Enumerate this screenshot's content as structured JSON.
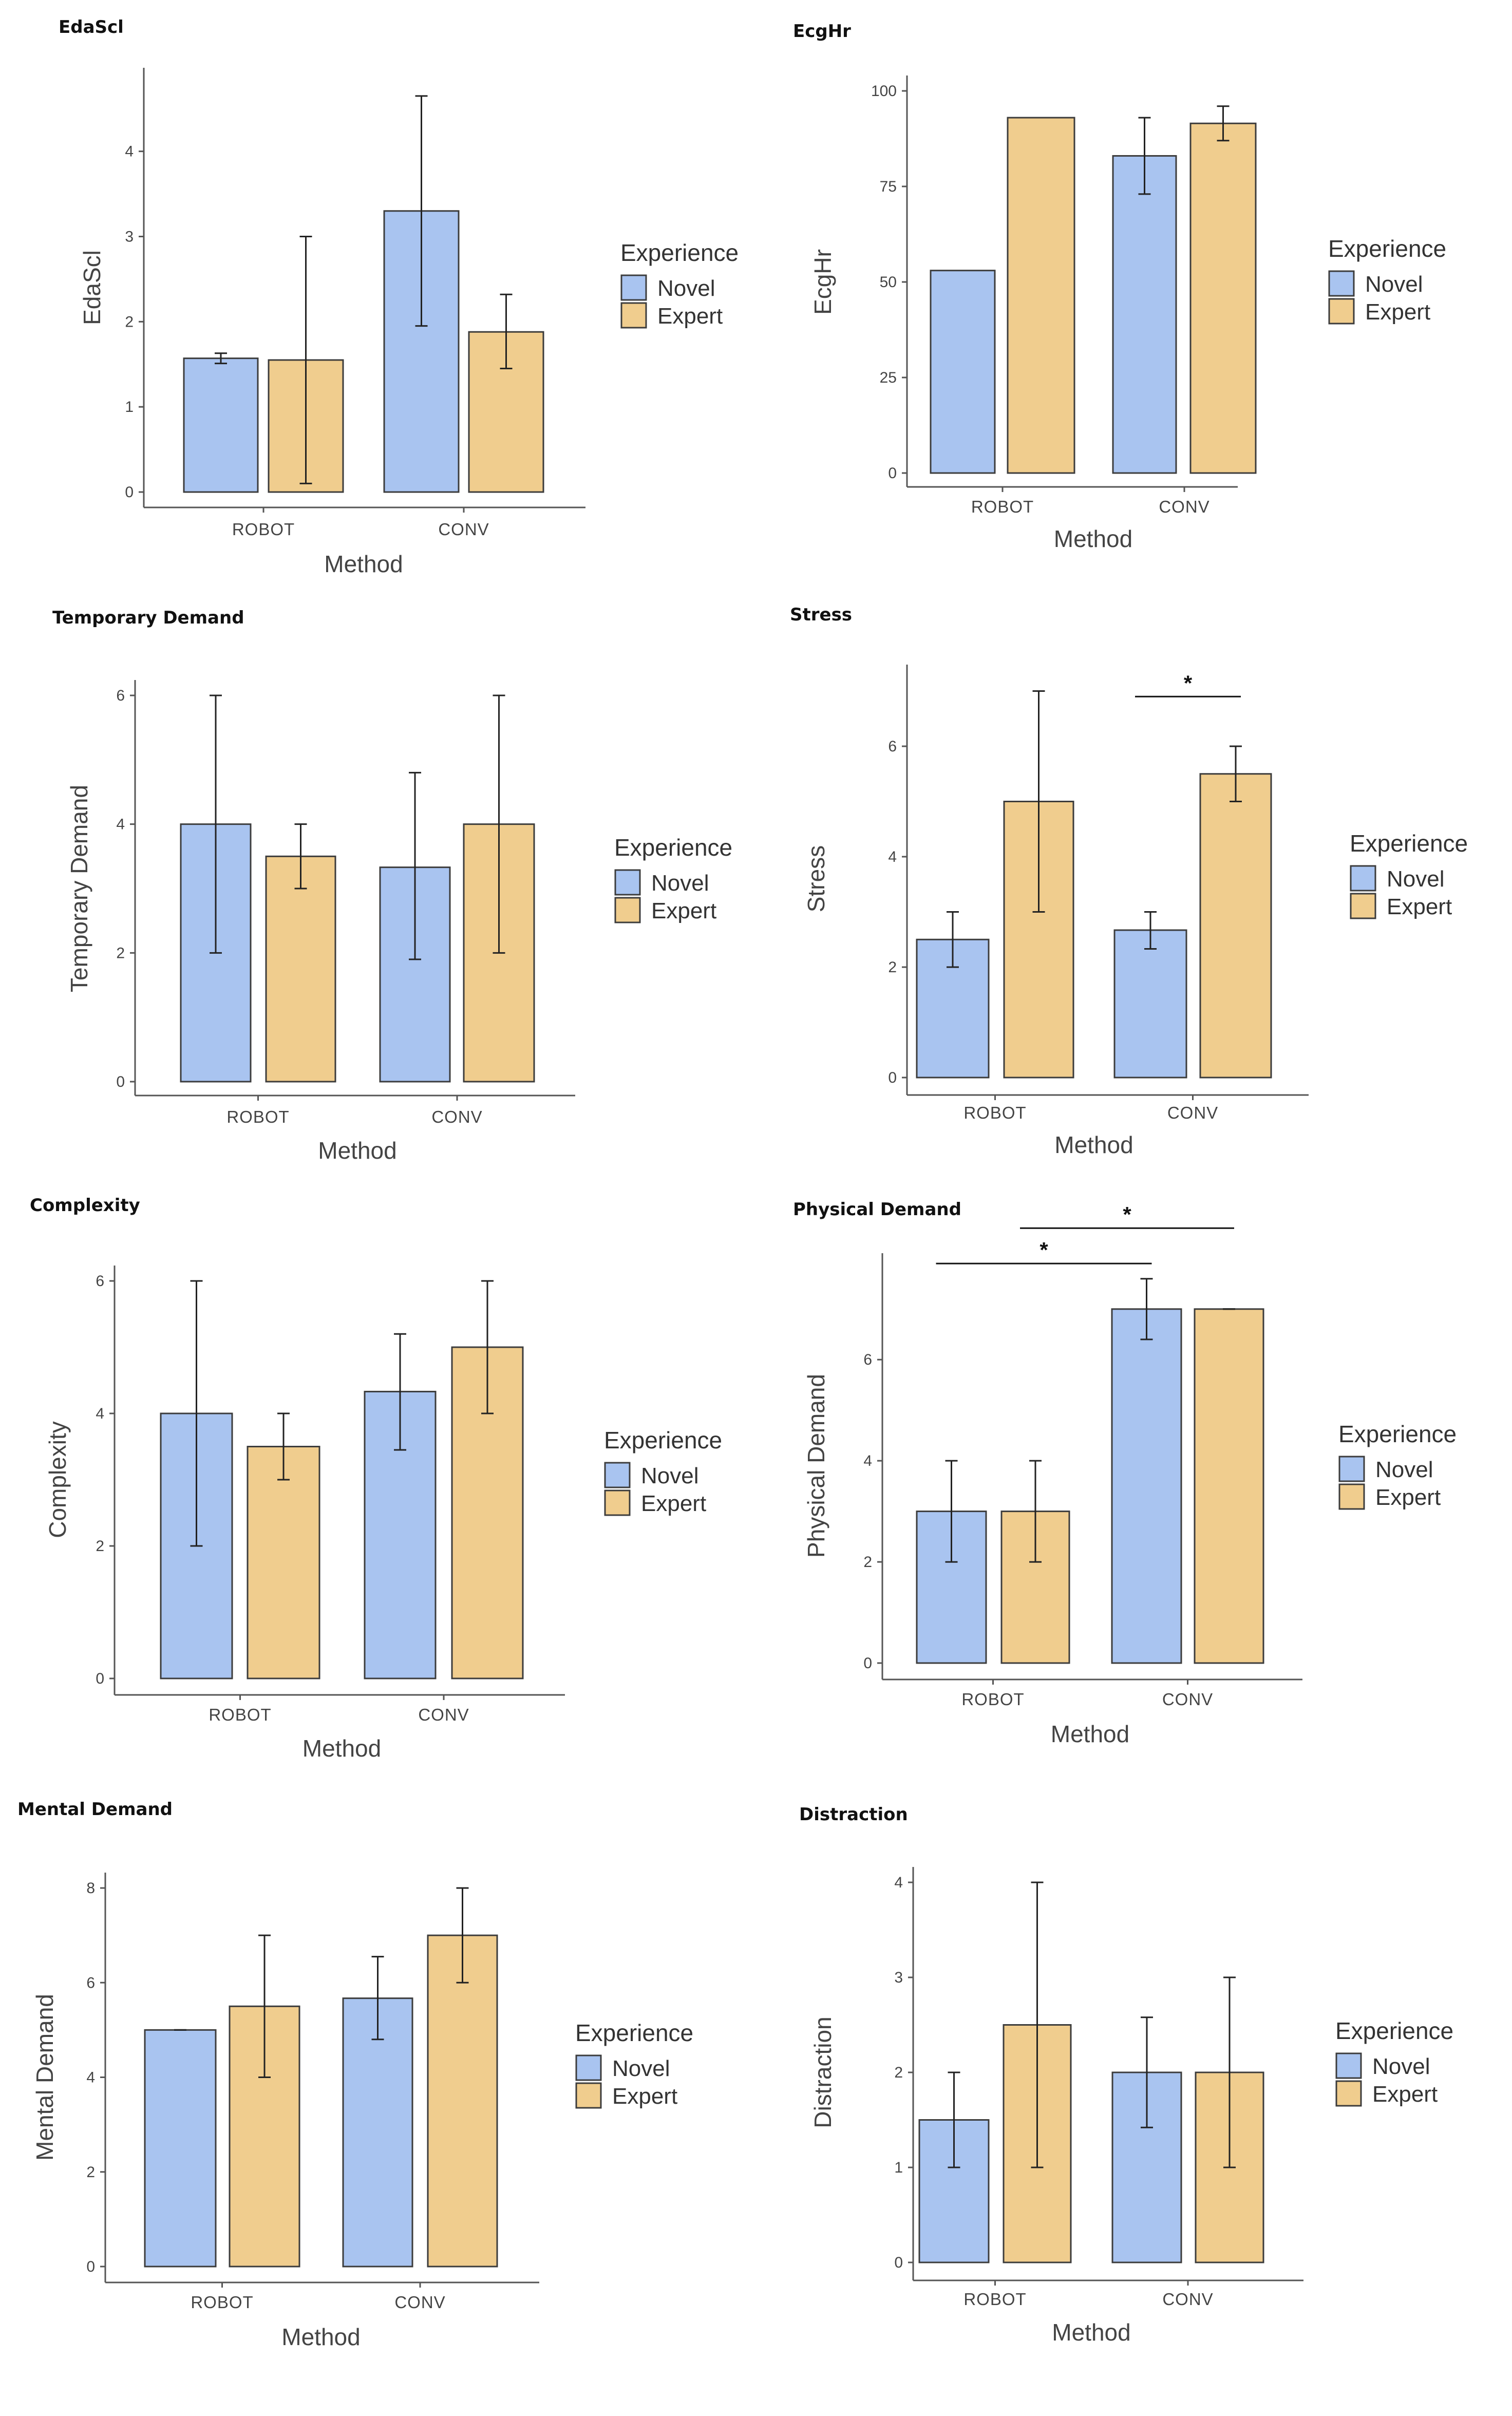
{
  "figure": {
    "legend": {
      "title": "Experience",
      "entries": [
        "Novel",
        "Expert"
      ]
    },
    "colors": {
      "Novel": "#a9c4f0",
      "Expert": "#f0cd8e",
      "stroke": "#3c3c3c",
      "axis": "#555555"
    },
    "sig_mark": "*"
  },
  "chart_data": [
    {
      "type": "bar",
      "title": "EdaScl",
      "xlabel": "Method",
      "ylabel": "EdaScl",
      "categories": [
        "ROBOT",
        "CONV"
      ],
      "yticks": [
        0,
        1,
        2,
        3,
        4
      ],
      "ylim": [
        0,
        4.8
      ],
      "series": [
        {
          "name": "Novel",
          "values": [
            1.57,
            3.3
          ],
          "err_low": [
            1.51,
            1.95
          ],
          "err_high": [
            1.63,
            4.65
          ]
        },
        {
          "name": "Expert",
          "values": [
            1.55,
            1.88
          ],
          "err_low": [
            0.1,
            1.45
          ],
          "err_high": [
            3.0,
            2.32
          ]
        }
      ],
      "significance": []
    },
    {
      "type": "bar",
      "title": "EcgHr",
      "xlabel": "Method",
      "ylabel": "EcgHr",
      "categories": [
        "ROBOT",
        "CONV"
      ],
      "yticks": [
        0,
        25,
        50,
        75,
        100
      ],
      "ylim": [
        0,
        100
      ],
      "series": [
        {
          "name": "Novel",
          "values": [
            53,
            83
          ],
          "err_low": [
            null,
            73
          ],
          "err_high": [
            null,
            93
          ]
        },
        {
          "name": "Expert",
          "values": [
            93,
            91.5
          ],
          "err_low": [
            null,
            87
          ],
          "err_high": [
            null,
            96
          ]
        }
      ],
      "significance": []
    },
    {
      "type": "bar",
      "title": "Temporary Demand",
      "xlabel": "Method",
      "ylabel": "Temporary Demand",
      "categories": [
        "ROBOT",
        "CONV"
      ],
      "yticks": [
        0,
        2,
        4,
        6
      ],
      "ylim": [
        0,
        6
      ],
      "series": [
        {
          "name": "Novel",
          "values": [
            4.0,
            3.33
          ],
          "err_low": [
            2.0,
            1.9
          ],
          "err_high": [
            6.0,
            4.8
          ]
        },
        {
          "name": "Expert",
          "values": [
            3.5,
            4.0
          ],
          "err_low": [
            3.0,
            2.0
          ],
          "err_high": [
            4.0,
            6.0
          ]
        }
      ],
      "significance": []
    },
    {
      "type": "bar",
      "title": "Stress",
      "xlabel": "Method",
      "ylabel": "Stress",
      "categories": [
        "ROBOT",
        "CONV"
      ],
      "yticks": [
        0,
        2,
        4,
        6
      ],
      "ylim": [
        0,
        7.2
      ],
      "series": [
        {
          "name": "Novel",
          "values": [
            2.5,
            2.67
          ],
          "err_low": [
            2.0,
            2.33
          ],
          "err_high": [
            3.0,
            3.0
          ]
        },
        {
          "name": "Expert",
          "values": [
            5.0,
            5.5
          ],
          "err_low": [
            3.0,
            5.0
          ],
          "err_high": [
            7.0,
            6.0
          ]
        }
      ],
      "significance": [
        {
          "from": "CONV.Novel",
          "to": "CONV.Expert",
          "y": 6.9,
          "label": "*"
        }
      ]
    },
    {
      "type": "bar",
      "title": "Complexity",
      "xlabel": "Method",
      "ylabel": "Complexity",
      "categories": [
        "ROBOT",
        "CONV"
      ],
      "yticks": [
        0,
        2,
        4,
        6
      ],
      "ylim": [
        0,
        6
      ],
      "series": [
        {
          "name": "Novel",
          "values": [
            4.0,
            4.33
          ],
          "err_low": [
            2.0,
            3.45
          ],
          "err_high": [
            6.0,
            5.2
          ]
        },
        {
          "name": "Expert",
          "values": [
            3.5,
            5.0
          ],
          "err_low": [
            3.0,
            4.0
          ],
          "err_high": [
            4.0,
            6.0
          ]
        }
      ],
      "significance": []
    },
    {
      "type": "bar",
      "title": "Physical Demand",
      "xlabel": "Method",
      "ylabel": "Physical Demand",
      "categories": [
        "ROBOT",
        "CONV"
      ],
      "yticks": [
        0,
        2,
        4,
        6
      ],
      "ylim": [
        0,
        7.8
      ],
      "series": [
        {
          "name": "Novel",
          "values": [
            3.0,
            7.0
          ],
          "err_low": [
            2.0,
            6.4
          ],
          "err_high": [
            4.0,
            7.6
          ]
        },
        {
          "name": "Expert",
          "values": [
            3.0,
            7.0
          ],
          "err_low": [
            2.0,
            7.0
          ],
          "err_high": [
            4.0,
            7.0
          ]
        }
      ],
      "significance": [
        {
          "from": "ROBOT.Novel",
          "to": "CONV.Novel",
          "y": 7.9,
          "label": "*"
        },
        {
          "from": "ROBOT.Expert",
          "to": "CONV.Expert",
          "y": 8.6,
          "label": "*"
        }
      ]
    },
    {
      "type": "bar",
      "title": "Mental Demand",
      "xlabel": "Method",
      "ylabel": "Mental Demand",
      "categories": [
        "ROBOT",
        "CONV"
      ],
      "yticks": [
        0,
        2,
        4,
        6,
        8
      ],
      "ylim": [
        0,
        8
      ],
      "series": [
        {
          "name": "Novel",
          "values": [
            5.0,
            5.67
          ],
          "err_low": [
            5.0,
            4.8
          ],
          "err_high": [
            5.0,
            6.55
          ]
        },
        {
          "name": "Expert",
          "values": [
            5.5,
            7.0
          ],
          "err_low": [
            4.0,
            6.0
          ],
          "err_high": [
            7.0,
            8.0
          ]
        }
      ],
      "significance": []
    },
    {
      "type": "bar",
      "title": "Distraction",
      "xlabel": "Method",
      "ylabel": "Distraction",
      "categories": [
        "ROBOT",
        "CONV"
      ],
      "yticks": [
        0,
        1,
        2,
        3,
        4
      ],
      "ylim": [
        0,
        4
      ],
      "series": [
        {
          "name": "Novel",
          "values": [
            1.5,
            2.0
          ],
          "err_low": [
            1.0,
            1.42
          ],
          "err_high": [
            2.0,
            2.58
          ]
        },
        {
          "name": "Expert",
          "values": [
            2.5,
            2.0
          ],
          "err_low": [
            1.0,
            1.0
          ],
          "err_high": [
            4.0,
            3.0
          ]
        }
      ],
      "significance": []
    }
  ]
}
